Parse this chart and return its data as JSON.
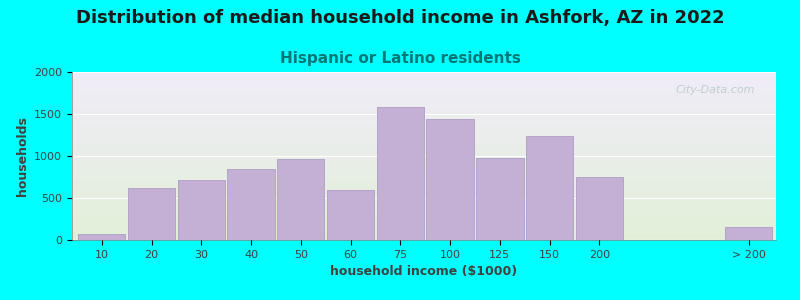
{
  "title": "Distribution of median household income in Ashfork, AZ in 2022",
  "subtitle": "Hispanic or Latino residents",
  "xlabel": "household income ($1000)",
  "ylabel": "households",
  "background_color": "#00FFFF",
  "bar_color": "#c4b0d4",
  "bar_edge_color": "#b0a0c4",
  "categories": [
    "10",
    "20",
    "30",
    "40",
    "50",
    "60",
    "75",
    "100",
    "125",
    "150",
    "200",
    "> 200"
  ],
  "values": [
    75,
    625,
    710,
    850,
    960,
    590,
    1580,
    1440,
    980,
    1240,
    750,
    150
  ],
  "ylim": [
    0,
    2000
  ],
  "yticks": [
    0,
    500,
    1000,
    1500,
    2000
  ],
  "title_fontsize": 13,
  "title_color": "#1a1a1a",
  "subtitle_fontsize": 11,
  "subtitle_color": "#007878",
  "axis_label_fontsize": 9,
  "tick_fontsize": 8,
  "watermark_text": "City-Data.com",
  "watermark_color": "#b8c8cc",
  "grad_top_color": "#e2f0d8",
  "grad_bottom_color": "#f0ecf8"
}
